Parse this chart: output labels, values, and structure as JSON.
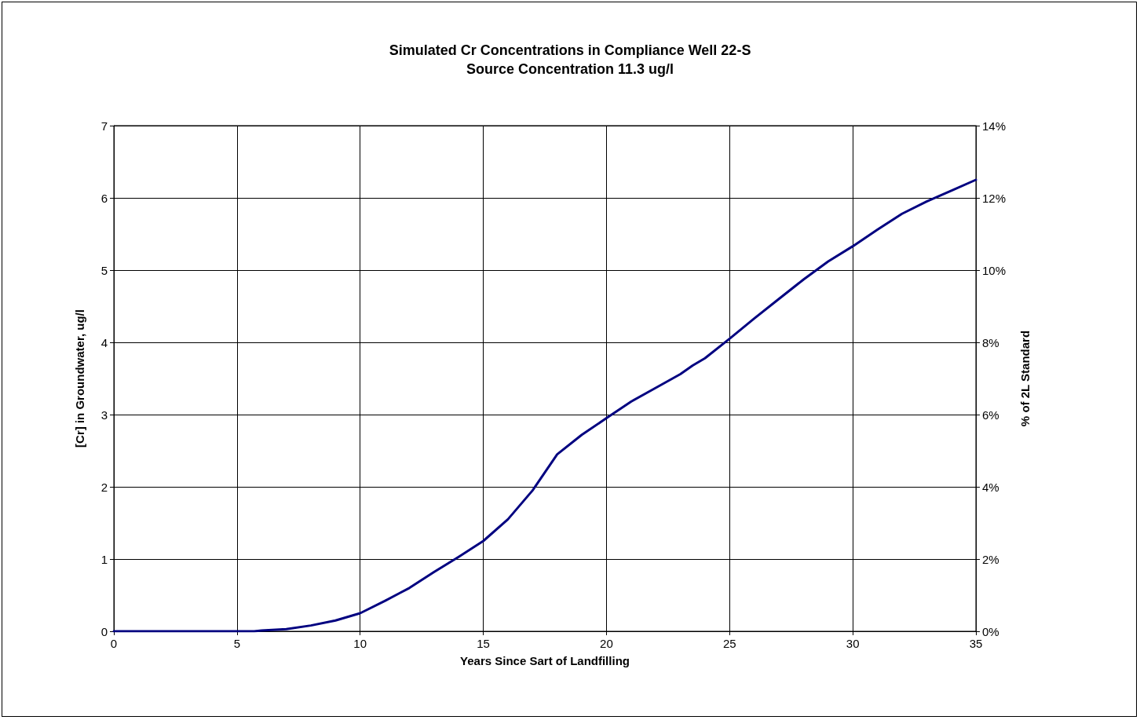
{
  "chart_data": {
    "type": "line",
    "title": "Simulated Cr Concentrations in Compliance Well 22-S",
    "subtitle": "Source Concentration 11.3 ug/l",
    "xlabel": "Years Since Sart of Landfilling",
    "ylabel": "[Cr] in Groundwater, ug/l",
    "y2label": "% of 2L Standard",
    "series": [
      {
        "color": "#000080",
        "x": [
          0,
          2,
          4,
          5.7,
          6,
          7,
          8,
          9,
          10,
          11,
          12,
          13,
          14,
          15,
          16,
          17,
          17.5,
          18,
          19,
          20,
          21,
          22,
          23,
          23.5,
          24,
          25,
          26,
          27,
          28,
          29,
          30,
          31,
          32,
          33,
          34,
          35
        ],
        "values": [
          0,
          0,
          0,
          0,
          0.01,
          0.03,
          0.08,
          0.15,
          0.25,
          0.42,
          0.6,
          0.82,
          1.03,
          1.25,
          1.55,
          1.95,
          2.2,
          2.45,
          2.72,
          2.95,
          3.18,
          3.37,
          3.56,
          3.68,
          3.78,
          4.05,
          4.33,
          4.6,
          4.87,
          5.12,
          5.33,
          5.56,
          5.78,
          5.95,
          6.1,
          6.25
        ]
      }
    ],
    "xlim": [
      0,
      35
    ],
    "xticks": [
      0,
      5,
      10,
      15,
      20,
      25,
      30,
      35
    ],
    "ylim": [
      0,
      7
    ],
    "yticks": [
      0,
      1,
      2,
      3,
      4,
      5,
      6,
      7
    ],
    "y2lim": [
      0,
      14
    ],
    "y2ticks": [
      {
        "value": 0,
        "label": "0%"
      },
      {
        "value": 2,
        "label": "2%"
      },
      {
        "value": 4,
        "label": "4%"
      },
      {
        "value": 6,
        "label": "6%"
      },
      {
        "value": 8,
        "label": "8%"
      },
      {
        "value": 10,
        "label": "10%"
      },
      {
        "value": 12,
        "label": "12%"
      },
      {
        "value": 14,
        "label": "14%"
      }
    ],
    "grid": true,
    "marker": "none",
    "line_style": "solid"
  }
}
